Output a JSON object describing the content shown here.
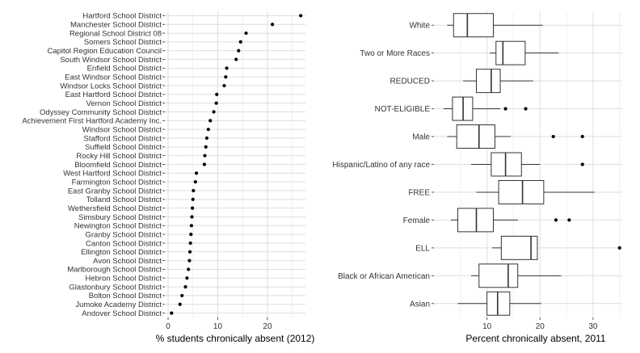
{
  "chart_data": [
    {
      "type": "scatter",
      "xlabel": "% students chronically absent (2012)",
      "ylabel": "",
      "xlim": [
        0,
        27
      ],
      "xticks": [
        0,
        10,
        20
      ],
      "grid": true,
      "points": [
        {
          "label": "Hartford School District",
          "x": 26.7
        },
        {
          "label": "Manchester School District",
          "x": 21.0
        },
        {
          "label": "Regional School District 08",
          "x": 15.7
        },
        {
          "label": "Somers School District",
          "x": 14.6
        },
        {
          "label": "Capitol Region Education Council",
          "x": 14.2
        },
        {
          "label": "South Windsor School District",
          "x": 13.7
        },
        {
          "label": "Enfield School District",
          "x": 11.8
        },
        {
          "label": "East Windsor School District",
          "x": 11.6
        },
        {
          "label": "Windsor Locks School District",
          "x": 11.3
        },
        {
          "label": "East Hartford School District",
          "x": 9.8
        },
        {
          "label": "Vernon School District",
          "x": 9.7
        },
        {
          "label": "Odyssey Community School District",
          "x": 9.2
        },
        {
          "label": "Achievement First Hartford Academy Inc.",
          "x": 8.5
        },
        {
          "label": "Windsor School District",
          "x": 8.1
        },
        {
          "label": "Stafford School District",
          "x": 7.8
        },
        {
          "label": "Suffield School District",
          "x": 7.6
        },
        {
          "label": "Rocky Hill School District",
          "x": 7.4
        },
        {
          "label": "Bloomfield School District",
          "x": 7.3
        },
        {
          "label": "West Hartford School District",
          "x": 5.7
        },
        {
          "label": "Farmington School District",
          "x": 5.5
        },
        {
          "label": "East Granby School District",
          "x": 5.1
        },
        {
          "label": "Tolland School District",
          "x": 5.0
        },
        {
          "label": "Wethersfield School District",
          "x": 4.9
        },
        {
          "label": "Simsbury School District",
          "x": 4.8
        },
        {
          "label": "Newington School District",
          "x": 4.7
        },
        {
          "label": "Granby School District",
          "x": 4.6
        },
        {
          "label": "Canton School District",
          "x": 4.5
        },
        {
          "label": "Ellington School District",
          "x": 4.4
        },
        {
          "label": "Avon School District",
          "x": 4.3
        },
        {
          "label": "Marlborough School District",
          "x": 4.1
        },
        {
          "label": "Hebron School District",
          "x": 3.8
        },
        {
          "label": "Glastonbury School District",
          "x": 3.5
        },
        {
          "label": "Bolton School District",
          "x": 2.8
        },
        {
          "label": "Jumoke Academy District",
          "x": 2.4
        },
        {
          "label": "Andover School District",
          "x": 0.7
        }
      ]
    },
    {
      "type": "boxplot",
      "xlabel": "Percent chronically absent, 2011",
      "ylabel": "",
      "xlim": [
        0,
        35.5
      ],
      "xticks": [
        10,
        20,
        30
      ],
      "grid": true,
      "boxes": [
        {
          "label": "White",
          "min": 2.5,
          "q1": 3.7,
          "median": 6.3,
          "q3": 11.2,
          "max": 20.5,
          "outliers": []
        },
        {
          "label": "Two or More Races",
          "min": 10.5,
          "q1": 11.7,
          "median": 13.0,
          "q3": 17.2,
          "max": 23.5,
          "outliers": []
        },
        {
          "label": "REDUCED",
          "min": 5.5,
          "q1": 8.0,
          "median": 10.8,
          "q3": 12.5,
          "max": 18.7,
          "outliers": []
        },
        {
          "label": "NOT-ELIGIBLE",
          "min": 1.8,
          "q1": 3.5,
          "median": 5.5,
          "q3": 7.3,
          "max": 12.5,
          "outliers": [
            13.5,
            17.3
          ]
        },
        {
          "label": "Male",
          "min": 2.5,
          "q1": 4.3,
          "median": 8.5,
          "q3": 11.5,
          "max": 14.5,
          "outliers": [
            22.5,
            28.0
          ]
        },
        {
          "label": "Hispanic/Latino of any race",
          "min": 7.0,
          "q1": 10.8,
          "median": 13.5,
          "q3": 16.5,
          "max": 20.0,
          "outliers": [
            28.0
          ]
        },
        {
          "label": "FREE",
          "min": 8.0,
          "q1": 12.2,
          "median": 16.7,
          "q3": 20.7,
          "max": 30.3,
          "outliers": []
        },
        {
          "label": "Female",
          "min": 3.2,
          "q1": 4.5,
          "median": 8.0,
          "q3": 11.2,
          "max": 15.8,
          "outliers": [
            23.0,
            25.5
          ]
        },
        {
          "label": "ELL",
          "min": 11.0,
          "q1": 12.7,
          "median": 18.3,
          "q3": 19.5,
          "max": 19.5,
          "outliers": [
            35.0
          ]
        },
        {
          "label": "Black or African American",
          "min": 7.0,
          "q1": 8.5,
          "median": 14.0,
          "q3": 15.8,
          "max": 24.0,
          "outliers": []
        },
        {
          "label": "Asian",
          "min": 4.5,
          "q1": 10.0,
          "median": 12.0,
          "q3": 14.3,
          "max": 20.2,
          "outliers": []
        }
      ]
    }
  ]
}
